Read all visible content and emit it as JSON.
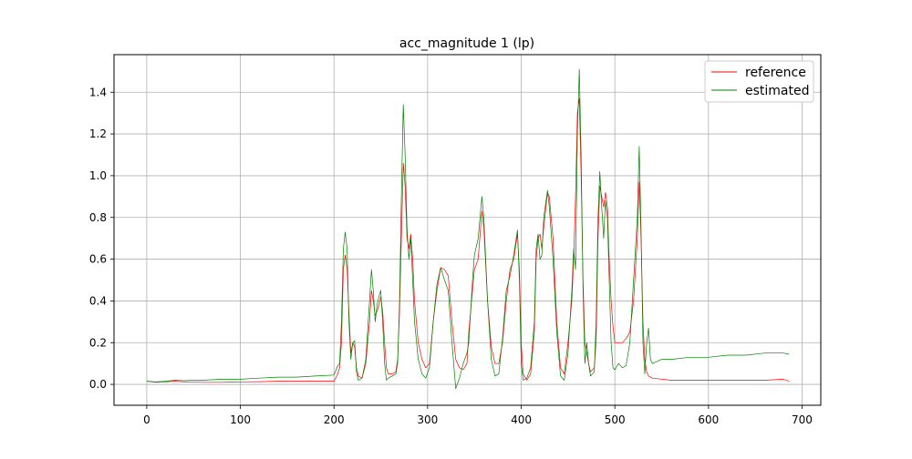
{
  "chart_data": {
    "type": "line",
    "title": "acc_magnitude 1 (lp)",
    "xlabel": "",
    "ylabel": "",
    "xlim": [
      -35,
      720
    ],
    "ylim": [
      -0.1,
      1.58
    ],
    "xticks": [
      0,
      100,
      200,
      300,
      400,
      500,
      600,
      700
    ],
    "xtick_labels": [
      "0",
      "100",
      "200",
      "300",
      "400",
      "500",
      "600",
      "700"
    ],
    "yticks": [
      0.0,
      0.2,
      0.4,
      0.6,
      0.8,
      1.0,
      1.2,
      1.4
    ],
    "ytick_labels": [
      "0.0",
      "0.2",
      "0.4",
      "0.6",
      "0.8",
      "1.0",
      "1.2",
      "1.4"
    ],
    "grid": true,
    "legend_position": "top-right",
    "series": [
      {
        "name": "reference",
        "color": "#ff0000",
        "points": [
          [
            0,
            0.015
          ],
          [
            10,
            0.01
          ],
          [
            20,
            0.012
          ],
          [
            30,
            0.015
          ],
          [
            40,
            0.012
          ],
          [
            50,
            0.012
          ],
          [
            60,
            0.01
          ],
          [
            80,
            0.01
          ],
          [
            100,
            0.012
          ],
          [
            120,
            0.013
          ],
          [
            140,
            0.015
          ],
          [
            160,
            0.015
          ],
          [
            180,
            0.015
          ],
          [
            200,
            0.015
          ],
          [
            204,
            0.05
          ],
          [
            206,
            0.08
          ],
          [
            208,
            0.2
          ],
          [
            210,
            0.55
          ],
          [
            212,
            0.62
          ],
          [
            214,
            0.55
          ],
          [
            216,
            0.35
          ],
          [
            218,
            0.15
          ],
          [
            220,
            0.2
          ],
          [
            222,
            0.18
          ],
          [
            224,
            0.08
          ],
          [
            226,
            0.04
          ],
          [
            230,
            0.03
          ],
          [
            234,
            0.1
          ],
          [
            238,
            0.3
          ],
          [
            240,
            0.45
          ],
          [
            242,
            0.4
          ],
          [
            244,
            0.33
          ],
          [
            246,
            0.35
          ],
          [
            248,
            0.38
          ],
          [
            250,
            0.42
          ],
          [
            252,
            0.35
          ],
          [
            254,
            0.2
          ],
          [
            256,
            0.08
          ],
          [
            258,
            0.05
          ],
          [
            262,
            0.05
          ],
          [
            266,
            0.06
          ],
          [
            268,
            0.12
          ],
          [
            270,
            0.35
          ],
          [
            272,
            0.7
          ],
          [
            274,
            1.06
          ],
          [
            276,
            0.95
          ],
          [
            278,
            0.7
          ],
          [
            280,
            0.65
          ],
          [
            282,
            0.72
          ],
          [
            284,
            0.6
          ],
          [
            286,
            0.4
          ],
          [
            290,
            0.2
          ],
          [
            294,
            0.12
          ],
          [
            298,
            0.08
          ],
          [
            302,
            0.1
          ],
          [
            306,
            0.3
          ],
          [
            310,
            0.45
          ],
          [
            314,
            0.56
          ],
          [
            318,
            0.55
          ],
          [
            322,
            0.52
          ],
          [
            326,
            0.3
          ],
          [
            330,
            0.12
          ],
          [
            334,
            0.08
          ],
          [
            338,
            0.07
          ],
          [
            342,
            0.1
          ],
          [
            344,
            0.25
          ],
          [
            348,
            0.45
          ],
          [
            350,
            0.55
          ],
          [
            354,
            0.6
          ],
          [
            358,
            0.83
          ],
          [
            360,
            0.75
          ],
          [
            364,
            0.4
          ],
          [
            368,
            0.18
          ],
          [
            372,
            0.1
          ],
          [
            376,
            0.1
          ],
          [
            380,
            0.2
          ],
          [
            384,
            0.4
          ],
          [
            388,
            0.55
          ],
          [
            392,
            0.6
          ],
          [
            396,
            0.72
          ],
          [
            398,
            0.55
          ],
          [
            400,
            0.2
          ],
          [
            402,
            0.05
          ],
          [
            406,
            0.02
          ],
          [
            410,
            0.05
          ],
          [
            414,
            0.25
          ],
          [
            416,
            0.6
          ],
          [
            418,
            0.7
          ],
          [
            420,
            0.72
          ],
          [
            422,
            0.65
          ],
          [
            424,
            0.75
          ],
          [
            428,
            0.92
          ],
          [
            430,
            0.9
          ],
          [
            434,
            0.7
          ],
          [
            438,
            0.3
          ],
          [
            442,
            0.08
          ],
          [
            446,
            0.05
          ],
          [
            450,
            0.2
          ],
          [
            454,
            0.4
          ],
          [
            456,
            0.6
          ],
          [
            458,
            0.9
          ],
          [
            460,
            1.3
          ],
          [
            462,
            1.37
          ],
          [
            464,
            1.0
          ],
          [
            466,
            0.5
          ],
          [
            468,
            0.2
          ],
          [
            472,
            0.1
          ],
          [
            474,
            0.06
          ],
          [
            478,
            0.08
          ],
          [
            480,
            0.2
          ],
          [
            482,
            0.7
          ],
          [
            484,
            0.95
          ],
          [
            486,
            0.9
          ],
          [
            488,
            0.85
          ],
          [
            490,
            0.92
          ],
          [
            492,
            0.85
          ],
          [
            494,
            0.6
          ],
          [
            496,
            0.4
          ],
          [
            498,
            0.28
          ],
          [
            500,
            0.2
          ],
          [
            504,
            0.2
          ],
          [
            508,
            0.2
          ],
          [
            512,
            0.22
          ],
          [
            516,
            0.25
          ],
          [
            520,
            0.4
          ],
          [
            524,
            0.7
          ],
          [
            526,
            0.97
          ],
          [
            528,
            0.7
          ],
          [
            530,
            0.3
          ],
          [
            532,
            0.12
          ],
          [
            534,
            0.06
          ],
          [
            536,
            0.04
          ],
          [
            540,
            0.03
          ],
          [
            560,
            0.02
          ],
          [
            580,
            0.02
          ],
          [
            600,
            0.02
          ],
          [
            620,
            0.02
          ],
          [
            640,
            0.02
          ],
          [
            660,
            0.02
          ],
          [
            680,
            0.025
          ],
          [
            686,
            0.015
          ]
        ]
      },
      {
        "name": "estimated",
        "color": "#008000",
        "points": [
          [
            0,
            0.015
          ],
          [
            10,
            0.012
          ],
          [
            20,
            0.015
          ],
          [
            30,
            0.02
          ],
          [
            40,
            0.018
          ],
          [
            50,
            0.02
          ],
          [
            60,
            0.02
          ],
          [
            80,
            0.025
          ],
          [
            100,
            0.025
          ],
          [
            120,
            0.03
          ],
          [
            140,
            0.035
          ],
          [
            160,
            0.035
          ],
          [
            180,
            0.04
          ],
          [
            200,
            0.045
          ],
          [
            204,
            0.09
          ],
          [
            206,
            0.1
          ],
          [
            208,
            0.3
          ],
          [
            210,
            0.65
          ],
          [
            212,
            0.73
          ],
          [
            214,
            0.65
          ],
          [
            216,
            0.3
          ],
          [
            218,
            0.12
          ],
          [
            220,
            0.2
          ],
          [
            222,
            0.21
          ],
          [
            224,
            0.06
          ],
          [
            226,
            0.02
          ],
          [
            230,
            0.03
          ],
          [
            234,
            0.12
          ],
          [
            238,
            0.4
          ],
          [
            240,
            0.55
          ],
          [
            242,
            0.45
          ],
          [
            244,
            0.3
          ],
          [
            246,
            0.38
          ],
          [
            248,
            0.42
          ],
          [
            250,
            0.45
          ],
          [
            252,
            0.3
          ],
          [
            254,
            0.1
          ],
          [
            256,
            0.02
          ],
          [
            258,
            0.03
          ],
          [
            262,
            0.04
          ],
          [
            266,
            0.05
          ],
          [
            268,
            0.1
          ],
          [
            270,
            0.4
          ],
          [
            272,
            0.9
          ],
          [
            274,
            1.34
          ],
          [
            276,
            1.1
          ],
          [
            278,
            0.75
          ],
          [
            280,
            0.6
          ],
          [
            282,
            0.7
          ],
          [
            284,
            0.5
          ],
          [
            286,
            0.3
          ],
          [
            290,
            0.12
          ],
          [
            294,
            0.05
          ],
          [
            298,
            0.03
          ],
          [
            302,
            0.08
          ],
          [
            306,
            0.3
          ],
          [
            310,
            0.48
          ],
          [
            314,
            0.56
          ],
          [
            318,
            0.5
          ],
          [
            322,
            0.45
          ],
          [
            326,
            0.2
          ],
          [
            330,
            -0.02
          ],
          [
            334,
            0.03
          ],
          [
            338,
            0.1
          ],
          [
            342,
            0.15
          ],
          [
            344,
            0.2
          ],
          [
            348,
            0.5
          ],
          [
            350,
            0.62
          ],
          [
            354,
            0.7
          ],
          [
            358,
            0.9
          ],
          [
            360,
            0.8
          ],
          [
            364,
            0.4
          ],
          [
            368,
            0.12
          ],
          [
            372,
            0.04
          ],
          [
            376,
            0.05
          ],
          [
            380,
            0.22
          ],
          [
            384,
            0.45
          ],
          [
            388,
            0.52
          ],
          [
            392,
            0.62
          ],
          [
            396,
            0.74
          ],
          [
            398,
            0.5
          ],
          [
            400,
            0.1
          ],
          [
            402,
            0.02
          ],
          [
            406,
            0.03
          ],
          [
            410,
            0.08
          ],
          [
            414,
            0.3
          ],
          [
            416,
            0.65
          ],
          [
            418,
            0.72
          ],
          [
            420,
            0.6
          ],
          [
            422,
            0.62
          ],
          [
            424,
            0.8
          ],
          [
            428,
            0.93
          ],
          [
            430,
            0.85
          ],
          [
            434,
            0.6
          ],
          [
            438,
            0.25
          ],
          [
            442,
            0.04
          ],
          [
            446,
            0.02
          ],
          [
            450,
            0.15
          ],
          [
            454,
            0.45
          ],
          [
            456,
            0.65
          ],
          [
            458,
            0.55
          ],
          [
            460,
            1.2
          ],
          [
            462,
            1.51
          ],
          [
            464,
            1.1
          ],
          [
            466,
            0.45
          ],
          [
            468,
            0.1
          ],
          [
            470,
            0.2
          ],
          [
            472,
            0.1
          ],
          [
            474,
            0.04
          ],
          [
            478,
            0.06
          ],
          [
            480,
            0.3
          ],
          [
            482,
            0.8
          ],
          [
            484,
            1.02
          ],
          [
            486,
            0.85
          ],
          [
            488,
            0.7
          ],
          [
            490,
            0.88
          ],
          [
            492,
            0.8
          ],
          [
            494,
            0.5
          ],
          [
            496,
            0.2
          ],
          [
            498,
            0.08
          ],
          [
            500,
            0.07
          ],
          [
            504,
            0.1
          ],
          [
            508,
            0.08
          ],
          [
            512,
            0.09
          ],
          [
            516,
            0.2
          ],
          [
            520,
            0.5
          ],
          [
            524,
            0.8
          ],
          [
            526,
            1.14
          ],
          [
            528,
            0.75
          ],
          [
            530,
            0.2
          ],
          [
            532,
            0.05
          ],
          [
            534,
            0.2
          ],
          [
            536,
            0.27
          ],
          [
            538,
            0.12
          ],
          [
            540,
            0.1
          ],
          [
            550,
            0.12
          ],
          [
            560,
            0.12
          ],
          [
            580,
            0.13
          ],
          [
            600,
            0.13
          ],
          [
            620,
            0.14
          ],
          [
            640,
            0.14
          ],
          [
            660,
            0.15
          ],
          [
            680,
            0.15
          ],
          [
            686,
            0.145
          ]
        ]
      }
    ]
  }
}
